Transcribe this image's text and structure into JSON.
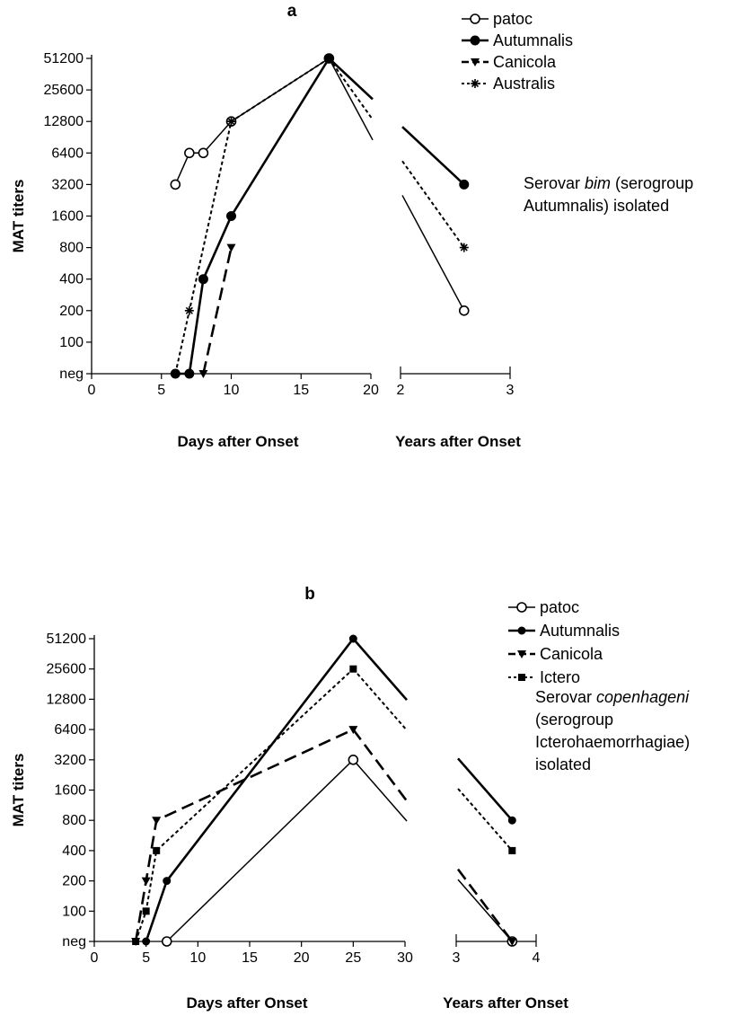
{
  "chart_data": [
    {
      "type": "line",
      "panel_label": "a",
      "ylabel": "MAT titers",
      "y_ticks": [
        "neg",
        "100",
        "200",
        "400",
        "800",
        "1600",
        "3200",
        "6400",
        "12800",
        "25600",
        "51200"
      ],
      "days_axis": {
        "label": "Days after Onset",
        "ticks": [
          "0",
          "5",
          "10",
          "15",
          "20"
        ],
        "range": [
          0,
          20
        ]
      },
      "years_axis": {
        "label": "Years after Onset",
        "ticks": [
          "2",
          "3"
        ],
        "range": [
          2,
          3
        ]
      },
      "legend_position": "top-right",
      "annotation": {
        "before": "Serovar ",
        "italic": "bim",
        "after_line1": " (serogroup",
        "line2": "Autumnalis) isolated"
      },
      "series": [
        {
          "name": "patoc",
          "style": "solid-thin",
          "marker": "circle-open",
          "days": [
            [
              6,
              "3200"
            ],
            [
              7,
              "6400"
            ],
            [
              8,
              "6400"
            ],
            [
              10,
              "12800"
            ],
            [
              17,
              "51200"
            ]
          ],
          "years": [
            [
              2.58,
              "200"
            ]
          ]
        },
        {
          "name": "Autumnalis",
          "style": "solid-thick",
          "marker": "circle-filled",
          "days": [
            [
              6,
              "neg"
            ],
            [
              7,
              "neg"
            ],
            [
              8,
              "400"
            ],
            [
              10,
              "1600"
            ],
            [
              17,
              "51200"
            ]
          ],
          "years": [
            [
              2.58,
              "3200"
            ]
          ]
        },
        {
          "name": "Canicola",
          "style": "long-dash",
          "marker": "triangle-down",
          "days": [
            [
              8,
              "neg"
            ],
            [
              10,
              "800"
            ]
          ],
          "years": []
        },
        {
          "name": "Australis",
          "style": "short-dash",
          "marker": "star",
          "days": [
            [
              6,
              "neg"
            ],
            [
              7,
              "200"
            ],
            [
              10,
              "12800"
            ],
            [
              17,
              "51200"
            ]
          ],
          "years": [
            [
              2.58,
              "800"
            ]
          ]
        }
      ]
    },
    {
      "type": "line",
      "panel_label": "b",
      "ylabel": "MAT titers",
      "y_ticks": [
        "neg",
        "100",
        "200",
        "400",
        "800",
        "1600",
        "3200",
        "6400",
        "12800",
        "25600",
        "51200"
      ],
      "days_axis": {
        "label": "Days after Onset",
        "ticks": [
          "0",
          "5",
          "10",
          "15",
          "20",
          "25",
          "30"
        ],
        "range": [
          0,
          30
        ]
      },
      "years_axis": {
        "label": "Years after Onset",
        "ticks": [
          "3",
          "4"
        ],
        "range": [
          3,
          4
        ]
      },
      "legend_position": "top-right",
      "annotation": {
        "before": "Serovar ",
        "italic": "copenhageni",
        "after_line1": "",
        "line2": "(serogroup",
        "line3": "Icterohaemorrhagiae)",
        "line4": "isolated"
      },
      "series": [
        {
          "name": "patoc",
          "style": "solid-thin",
          "marker": "circle-open",
          "days": [
            [
              7,
              "neg"
            ],
            [
              25,
              "3200"
            ]
          ],
          "years": [
            [
              3.7,
              "neg"
            ]
          ]
        },
        {
          "name": "Autumnalis",
          "style": "solid-thick",
          "marker": "dot-filled",
          "days": [
            [
              5,
              "neg"
            ],
            [
              7,
              "200"
            ],
            [
              25,
              "51200"
            ]
          ],
          "years": [
            [
              3.7,
              "800"
            ]
          ]
        },
        {
          "name": "Canicola",
          "style": "long-dash",
          "marker": "triangle-down",
          "days": [
            [
              4,
              "50"
            ],
            [
              5,
              "200"
            ],
            [
              6,
              "800"
            ],
            [
              25,
              "6400"
            ]
          ],
          "years": [
            [
              3.7,
              "neg"
            ]
          ]
        },
        {
          "name": "Ictero",
          "style": "short-dash",
          "marker": "square",
          "days": [
            [
              4,
              "neg"
            ],
            [
              5,
              "100"
            ],
            [
              6,
              "400"
            ],
            [
              25,
              "25600"
            ]
          ],
          "years": [
            [
              3.7,
              "400"
            ]
          ]
        }
      ]
    }
  ]
}
